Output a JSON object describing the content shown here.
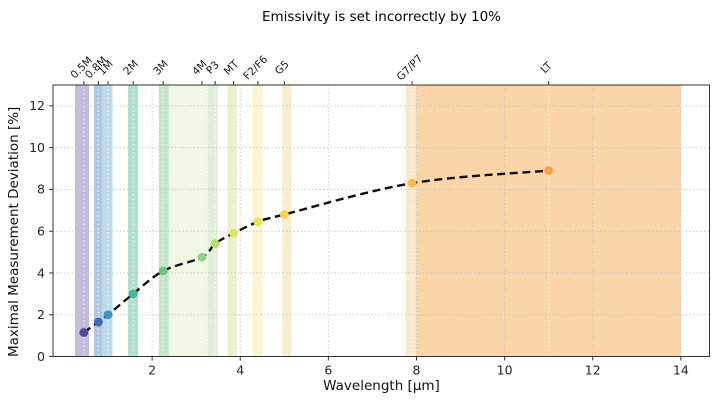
{
  "chart_data": {
    "type": "scatter",
    "title": "Emissivity is set incorrectly by 10%",
    "xlabel": "Wavelength [µm]",
    "ylabel": "Maximal Measurement Deviation [%]",
    "xlim": [
      -0.25,
      14.65
    ],
    "ylim": [
      0,
      13
    ],
    "xticks": [
      2,
      4,
      6,
      8,
      10,
      12,
      14
    ],
    "yticks": [
      0,
      2,
      4,
      6,
      8,
      10,
      12
    ],
    "grid": "dotted, both axes",
    "legend": "none",
    "curve": {
      "style": "dashed",
      "color": "#111111",
      "description": "smooth saturating fit through all sensor data points, from 0.45 um to 11 um"
    },
    "sensors": [
      {
        "label": "0.5M",
        "wavelength_um": 0.45,
        "deviation_pct": 1.15,
        "band_um": [
          0.25,
          0.57
        ],
        "band_color": "#c4bcdd",
        "point_color": "#5149a1"
      },
      {
        "label": "0.8M",
        "wavelength_um": 0.78,
        "deviation_pct": 1.65,
        "band_um": [
          0.68,
          0.88
        ],
        "band_color": "#b0c8e6",
        "point_color": "#3c6db2"
      },
      {
        "label": "1M",
        "wavelength_um": 1.0,
        "deviation_pct": 2.0,
        "band_um": [
          0.88,
          1.1
        ],
        "band_color": "#bedbea",
        "point_color": "#4295c3"
      },
      {
        "label": "2M",
        "wavelength_um": 1.57,
        "deviation_pct": 3.0,
        "band_um": [
          1.45,
          1.68
        ],
        "band_color": "#b2e0d0",
        "point_color": "#45b69d"
      },
      {
        "label": "3M",
        "wavelength_um": 2.25,
        "deviation_pct": 4.1,
        "band_um": [
          2.15,
          2.38
        ],
        "band_color": "#c5e6c9",
        "point_color": "#6ec580"
      },
      {
        "label": "4M",
        "wavelength_um": 3.13,
        "deviation_pct": 4.75,
        "band_um": [
          2.38,
          3.26
        ],
        "band_color": "#f1f7e5",
        "point_color": "#91d184"
      },
      {
        "label": "P3",
        "wavelength_um": 3.43,
        "deviation_pct": 5.4,
        "band_um": [
          3.26,
          3.49
        ],
        "band_color": "#e0efd7",
        "point_color": "#b6dd6e"
      },
      {
        "label": "MT",
        "wavelength_um": 3.85,
        "deviation_pct": 5.9,
        "band_um": [
          3.71,
          3.92
        ],
        "band_color": "#e9f1c7",
        "point_color": "#d9e860"
      },
      {
        "label": "F2/F6",
        "wavelength_um": 4.4,
        "deviation_pct": 6.45,
        "band_um": [
          4.28,
          4.51
        ],
        "band_color": "#fbf5d1",
        "point_color": "#f0e255"
      },
      {
        "label": "G5",
        "wavelength_um": 5.0,
        "deviation_pct": 6.8,
        "band_um": [
          4.95,
          5.16
        ],
        "band_color": "#f9eecc",
        "point_color": "#f4d550"
      },
      {
        "label": "G7/P7",
        "wavelength_um": 7.9,
        "deviation_pct": 8.3,
        "band_um": [
          7.75,
          8.0
        ],
        "band_color": "#fbe9cc",
        "point_color": "#f6bb4c"
      },
      {
        "label": "LT",
        "wavelength_um": 11.0,
        "deviation_pct": 8.9,
        "band_um": [
          8.0,
          14.0
        ],
        "band_color": "#f9d5a9",
        "point_color": "#f6a14c"
      }
    ],
    "colors": {
      "grid": "#c6c6c6",
      "spine": "#333333",
      "tick_text": "#262626",
      "sensor_label_text": "#1a1a1a",
      "band_center_line": "rgba(255,255,255,0.65)"
    }
  }
}
